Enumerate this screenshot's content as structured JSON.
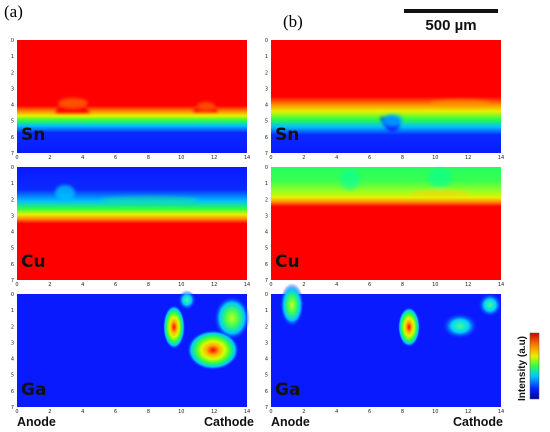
{
  "figure": {
    "panel_labels": [
      "(a)",
      "(b)"
    ],
    "scale_bar": "500 µm",
    "bottom_labels": {
      "left": "Anode",
      "right": "Cathode"
    },
    "colorbar_label": "Intensity (a.u)"
  },
  "chart_data": [
    {
      "type": "heatmap",
      "panel": "(a)",
      "element": "Sn",
      "x_ticks": [
        "0",
        "2",
        "4",
        "6",
        "8",
        "10",
        "12",
        "14"
      ],
      "y_ticks": [
        "0",
        "1",
        "2",
        "3",
        "4",
        "5",
        "6",
        "7"
      ],
      "xlim": [
        0,
        14
      ],
      "ylim": [
        0,
        7
      ],
      "colormap": "jet"
    },
    {
      "type": "heatmap",
      "panel": "(a)",
      "element": "Cu",
      "x_ticks": [
        "0",
        "2",
        "4",
        "6",
        "8",
        "10",
        "12",
        "14"
      ],
      "y_ticks": [
        "0",
        "1",
        "2",
        "3",
        "4",
        "5",
        "6",
        "7"
      ],
      "xlim": [
        0,
        14
      ],
      "ylim": [
        0,
        7
      ],
      "colormap": "jet"
    },
    {
      "type": "heatmap",
      "panel": "(a)",
      "element": "Ga",
      "x_ticks": [
        "0",
        "2",
        "4",
        "6",
        "8",
        "10",
        "12",
        "14"
      ],
      "y_ticks": [
        "0",
        "1",
        "2",
        "3",
        "4",
        "5",
        "6",
        "7"
      ],
      "xlim": [
        0,
        14
      ],
      "ylim": [
        0,
        7
      ],
      "colormap": "jet"
    },
    {
      "type": "heatmap",
      "panel": "(b)",
      "element": "Sn",
      "x_ticks": [
        "0",
        "2",
        "4",
        "6",
        "8",
        "10",
        "12",
        "14"
      ],
      "y_ticks": [
        "0",
        "1",
        "2",
        "3",
        "4",
        "5",
        "6",
        "7"
      ],
      "xlim": [
        0,
        14
      ],
      "ylim": [
        0,
        7
      ],
      "colormap": "jet"
    },
    {
      "type": "heatmap",
      "panel": "(b)",
      "element": "Cu",
      "x_ticks": [
        "0",
        "2",
        "4",
        "6",
        "8",
        "10",
        "12",
        "14"
      ],
      "y_ticks": [
        "0",
        "1",
        "2",
        "3",
        "4",
        "5",
        "6",
        "7"
      ],
      "xlim": [
        0,
        14
      ],
      "ylim": [
        0,
        7
      ],
      "colormap": "jet"
    },
    {
      "type": "heatmap",
      "panel": "(b)",
      "element": "Ga",
      "x_ticks": [
        "0",
        "2",
        "4",
        "6",
        "8",
        "10",
        "12",
        "14"
      ],
      "y_ticks": [
        "0",
        "1",
        "2",
        "3",
        "4",
        "5",
        "6",
        "7"
      ],
      "xlim": [
        0,
        14
      ],
      "ylim": [
        0,
        7
      ],
      "colormap": "jet"
    }
  ]
}
